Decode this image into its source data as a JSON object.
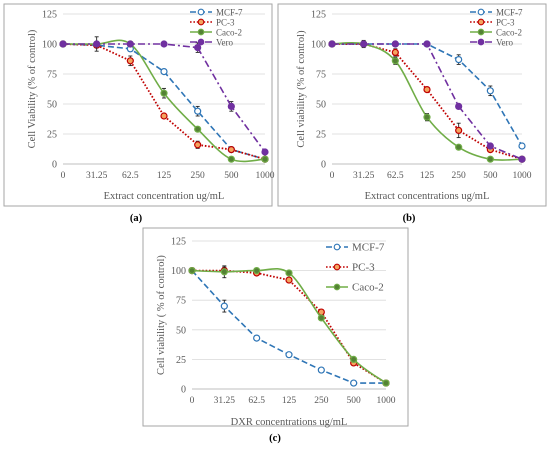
{
  "chart_data": [
    {
      "type": "line",
      "panel_label": "(a)",
      "xlabel": "Extract concentration ug/mL",
      "ylabel": "Cell Viability (% of control)",
      "categories": [
        "0",
        "31.25",
        "62.5",
        "125",
        "250",
        "500",
        "1000"
      ],
      "ylim": [
        0,
        125
      ],
      "yticks": [
        0,
        25,
        50,
        75,
        100,
        125
      ],
      "legend_position": "top-right",
      "series": [
        {
          "name": "MCF-7",
          "values": [
            100,
            99,
            96,
            77,
            44,
            12,
            4
          ],
          "color": "#2e75b6",
          "dash": "dash",
          "marker_fill": "#ffffff",
          "errors": [
            0,
            2,
            2,
            2,
            4,
            2,
            1
          ]
        },
        {
          "name": "PC-3",
          "values": [
            100,
            99,
            86,
            40,
            16,
            12,
            4
          ],
          "color": "#c00000",
          "dash": "dot",
          "marker_fill": "#f4a460",
          "errors": [
            0,
            2,
            4,
            2,
            3,
            2,
            1
          ]
        },
        {
          "name": "Caco-2",
          "values": [
            100,
            100,
            100,
            59,
            29,
            4,
            4
          ],
          "color": "#70ad47",
          "dash": "solid",
          "marker_fill": "#548235",
          "errors": [
            0,
            2,
            2,
            4,
            2,
            1,
            1
          ]
        },
        {
          "name": "Vero",
          "values": [
            100,
            100,
            100,
            100,
            97,
            48,
            10
          ],
          "color": "#7030a0",
          "dash": "dashdot",
          "marker_fill": "#7030a0",
          "errors": [
            0,
            6,
            2,
            1,
            4,
            4,
            2
          ]
        }
      ]
    },
    {
      "type": "line",
      "panel_label": "(b)",
      "xlabel": "Extract concentrations ug/mL",
      "ylabel": "Cell viability (% of control)",
      "categories": [
        "0",
        "31.25",
        "62.5",
        "125",
        "250",
        "500",
        "1000"
      ],
      "ylim": [
        0,
        125
      ],
      "yticks": [
        0,
        25,
        50,
        75,
        100,
        125
      ],
      "legend_position": "top-right",
      "series": [
        {
          "name": "MCF-7",
          "values": [
            100,
            100,
            100,
            100,
            87,
            61,
            15
          ],
          "color": "#2e75b6",
          "dash": "dash",
          "marker_fill": "#ffffff",
          "errors": [
            0,
            2,
            2,
            2,
            4,
            4,
            1
          ]
        },
        {
          "name": "PC-3",
          "values": [
            100,
            100,
            93,
            62,
            28,
            12,
            4
          ],
          "color": "#c00000",
          "dash": "dot",
          "marker_fill": "#f4a460",
          "errors": [
            0,
            3,
            3,
            2,
            6,
            2,
            1
          ]
        },
        {
          "name": "Caco-2",
          "values": [
            100,
            100,
            86,
            39,
            14,
            4,
            4
          ],
          "color": "#70ad47",
          "dash": "solid",
          "marker_fill": "#548235",
          "errors": [
            0,
            2,
            3,
            3,
            2,
            1,
            1
          ]
        },
        {
          "name": "Vero",
          "values": [
            100,
            100,
            100,
            100,
            48,
            15,
            4
          ],
          "color": "#7030a0",
          "dash": "dashdot",
          "marker_fill": "#7030a0",
          "errors": [
            0,
            2,
            2,
            1,
            2,
            2,
            1
          ]
        }
      ]
    },
    {
      "type": "line",
      "panel_label": "(c)",
      "xlabel": "DXR concentrations ug/mL",
      "ylabel": "Cell viability ( % of control)",
      "categories": [
        "0",
        "31.25",
        "62.5",
        "125",
        "250",
        "500",
        "1000"
      ],
      "ylim": [
        0,
        125
      ],
      "yticks": [
        0,
        25,
        50,
        75,
        100,
        125
      ],
      "legend_position": "top-right",
      "series": [
        {
          "name": "MCF-7",
          "values": [
            100,
            70,
            43,
            29,
            16,
            5,
            5
          ],
          "color": "#2e75b6",
          "dash": "dash",
          "marker_fill": "#ffffff",
          "errors": [
            0,
            5,
            1,
            1,
            1,
            1,
            1
          ]
        },
        {
          "name": "PC-3",
          "values": [
            100,
            100,
            98,
            92,
            65,
            22,
            5
          ],
          "color": "#c00000",
          "dash": "dot",
          "marker_fill": "#f4a460",
          "errors": [
            0,
            3,
            2,
            2,
            2,
            2,
            1
          ]
        },
        {
          "name": "Caco-2",
          "values": [
            100,
            99,
            100,
            98,
            60,
            25,
            5
          ],
          "color": "#70ad47",
          "dash": "solid",
          "marker_fill": "#548235",
          "errors": [
            0,
            5,
            2,
            2,
            2,
            2,
            1
          ]
        }
      ]
    }
  ]
}
